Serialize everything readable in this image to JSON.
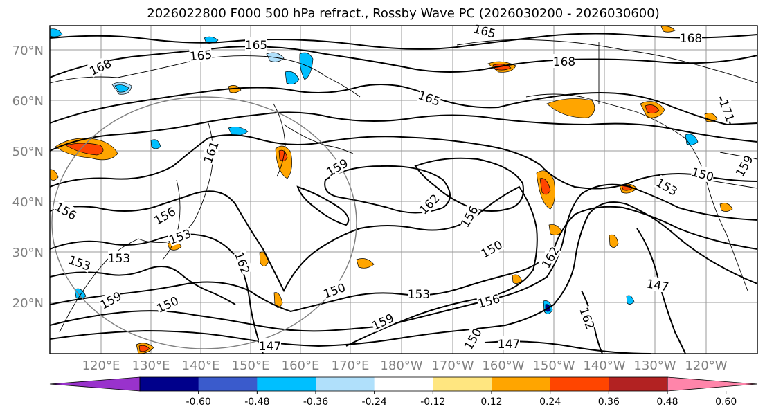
{
  "title": "2026022800 F000 500 hPa refract., Rossby Wave PC (2026030200 - 2026030600)",
  "map": {
    "lat_labels": [
      "70°N",
      "60°N",
      "50°N",
      "40°N",
      "30°N",
      "20°N"
    ],
    "lon_labels": [
      "120°E",
      "130°E",
      "140°E",
      "150°E",
      "160°E",
      "170°E",
      "180°W",
      "170°W",
      "160°W",
      "150°W",
      "140°W",
      "130°W",
      "120°W"
    ],
    "contour_labels": [
      "165",
      "165",
      "165",
      "168",
      "168",
      "168",
      "165",
      "171",
      "161",
      "159",
      "162",
      "156",
      "156",
      "156",
      "153",
      "153",
      "153",
      "150",
      "150",
      "150",
      "150",
      "147",
      "147",
      "147",
      "162",
      "162",
      "162",
      "159",
      "159",
      "153",
      "150",
      "156",
      "153",
      "159"
    ]
  },
  "colorbar": {
    "colors": [
      "#9932cc",
      "#00008b",
      "#3a5bcc",
      "#00bfff",
      "#b0e0fb",
      "#ffffff",
      "#ffe680",
      "#ffa500",
      "#ff4500",
      "#b22222",
      "#ff85aa"
    ],
    "tick_labels": [
      "-0.60",
      "-0.48",
      "-0.36",
      "-0.24",
      "-0.12",
      "0.12",
      "0.24",
      "0.36",
      "0.48",
      "0.60"
    ]
  }
}
